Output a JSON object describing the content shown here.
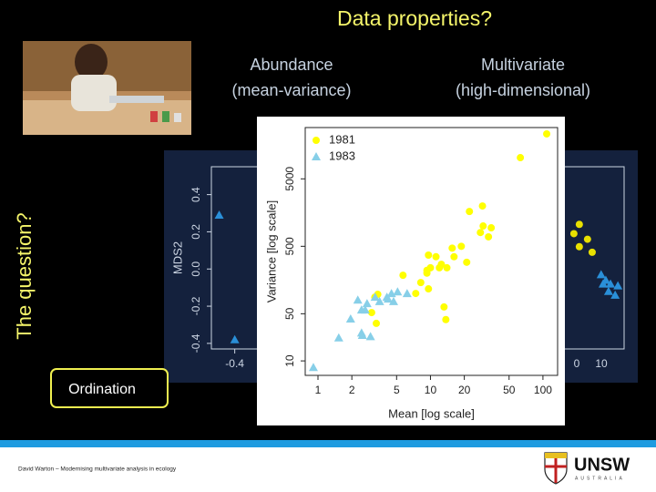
{
  "slide": {
    "title": "Data properties?",
    "col1": [
      "Abundance",
      "(mean-variance)"
    ],
    "col2": [
      "Multivariate",
      "(high-dimensional)"
    ],
    "side_label": "The question?",
    "box_label": "Ordination",
    "footer": "David Warton – Modernising multivariate analysis in ecology",
    "logo": [
      "UNSW",
      "AUSTRALIA"
    ]
  },
  "chart_data": [
    {
      "type": "scatter",
      "y_label": "MDS2",
      "xlim": [
        -0.46,
        0.6
      ],
      "ylim": [
        -0.43,
        0.55
      ],
      "xticks": [
        -0.4
      ],
      "extra_x_labels": [
        "0",
        "10"
      ],
      "yticks": [
        -0.4,
        -0.2,
        {
          "value": 0,
          "label": "0.0"
        },
        0.2,
        0.4
      ],
      "series": [
        {
          "color": "#2a8fd8",
          "marker": "triangle",
          "x": [
            -0.44,
            -0.4,
            0.541,
            0.553,
            0.565,
            0.56,
            0.584,
            0.577,
            0.546
          ],
          "y": [
            0.29,
            -0.38,
            -0.03,
            -0.06,
            -0.08,
            -0.12,
            -0.09,
            -0.14,
            -0.08
          ]
        },
        {
          "color": "#e8e000",
          "marker": "circle",
          "x": [
            0.485,
            0.471,
            0.506,
            0.518,
            0.485
          ],
          "y": [
            0.24,
            0.19,
            0.16,
            0.09,
            0.12
          ]
        }
      ]
    },
    {
      "type": "scatter",
      "x_label": "Mean [log scale]",
      "y_label": "Variance [log scale]",
      "log_x": true,
      "log_y": true,
      "xlim": [
        0.77,
        135
      ],
      "ylim": [
        6.1,
        28800
      ],
      "xticks": [
        1,
        2,
        5,
        10,
        20,
        50,
        100
      ],
      "yticks": [
        10,
        50,
        500,
        5000
      ],
      "legend": "upper left",
      "series": [
        {
          "name": "1981",
          "color": "#ffff00",
          "marker": "circle",
          "x": [
            108,
            63,
            29,
            22.2,
            29.4,
            34.7,
            32.8,
            27.8,
            18.8,
            15.6,
            16.2,
            9.6,
            11.2,
            10,
            12,
            14,
            9.3,
            9.3,
            12.5,
            21,
            8.2,
            9.6,
            7.4,
            5.7,
            3.2,
            3.0,
            13.2,
            13.7,
            3.3,
            3.4
          ],
          "y": [
            23200,
            10300,
            1980,
            1640,
            1000,
            940,
            690,
            800,
            500,
            470,
            350,
            370,
            350,
            240,
            240,
            240,
            200,
            220,
            270,
            290,
            145,
            117,
            100,
            186,
            88,
            52,
            63,
            41,
            36,
            97
          ]
        },
        {
          "name": "1983",
          "color": "#87cfe8",
          "marker": "triangle",
          "x": [
            0.91,
            1.53,
            2.44,
            2.48,
            2.93,
            2.63,
            2.26,
            2.73,
            3.22,
            3.53,
            4.1,
            4.5,
            4.7,
            5.1,
            6.2,
            1.95,
            2.44,
            4.2
          ],
          "y": [
            8,
            22,
            26,
            24,
            23,
            57,
            80,
            71,
            88,
            76,
            88,
            100,
            76,
            106,
            100,
            42,
            57,
            83
          ]
        }
      ]
    }
  ]
}
